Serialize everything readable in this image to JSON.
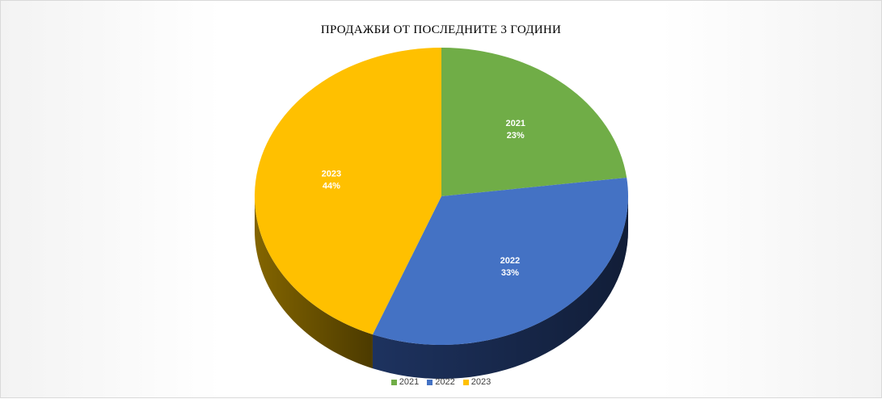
{
  "chart_data": {
    "type": "pie",
    "title": "ПРОДАЖБИ ОТ ПОСЛЕДНИТЕ 3 ГОДИНИ",
    "categories": [
      "2021",
      "2022",
      "2023"
    ],
    "values": [
      23,
      33,
      44
    ],
    "value_labels": [
      "23%",
      "33%",
      "44%"
    ],
    "colors": [
      "#70AD47",
      "#4472C4",
      "#FFC000"
    ],
    "side_colors": [
      "#3d6b1f",
      "#1f3564",
      "#8a6a00"
    ],
    "style": "3d",
    "legend": "bottom",
    "grid": false
  }
}
